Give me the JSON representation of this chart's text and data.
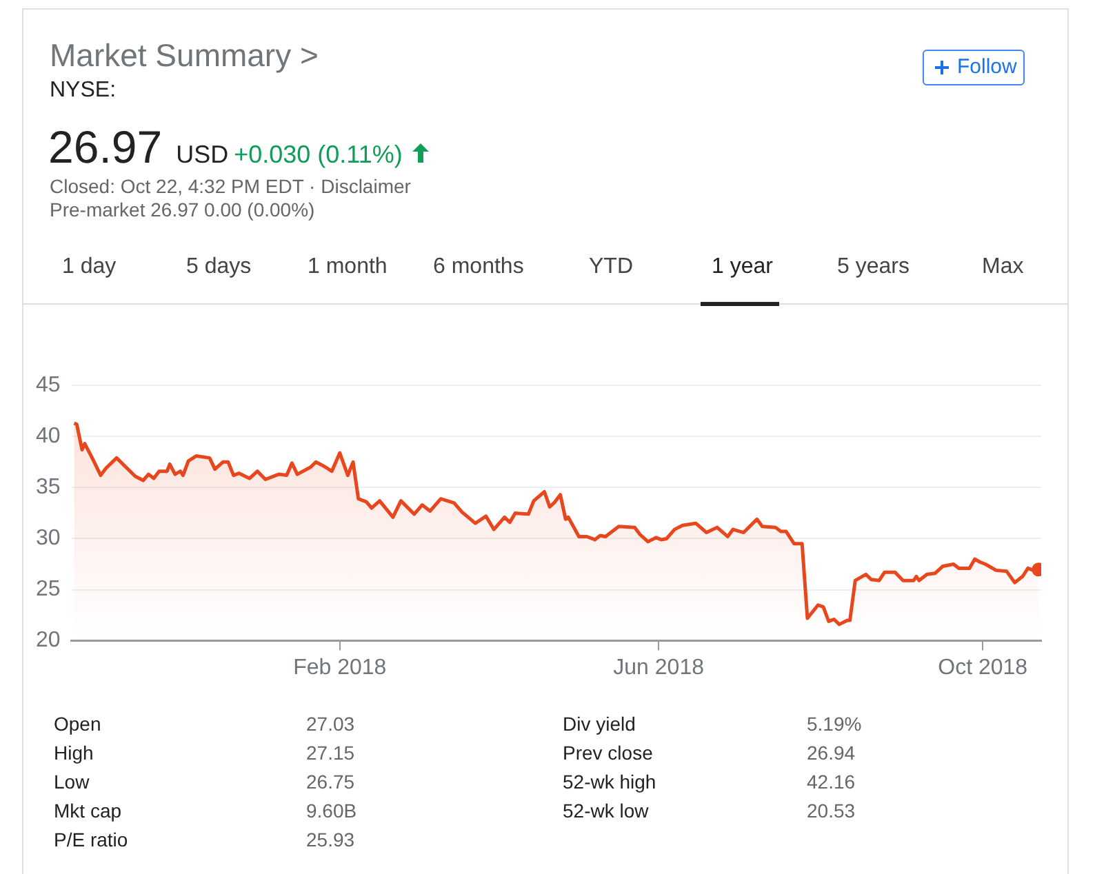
{
  "chart_data": [
    {
      "type": "other",
      "title": "Market Summary >",
      "subtitle": "NYSE:",
      "annotations": [
        "26.97",
        "USD",
        "+0.030 (0.11%)",
        "Closed: Oct 22, 4:32 PM EDT · Disclaimer",
        "Pre-market 26.97 0.00 (0.00%)",
        "Follow",
        "1 day",
        "5 days",
        "1 month",
        "6 months",
        "YTD",
        "1 year",
        "5 years",
        "Max"
      ]
    },
    {
      "type": "line",
      "grid": "y",
      "legend": false,
      "marker": "none",
      "xlim": [
        "2017-10-23",
        "2018-10-23"
      ],
      "ylim": [
        20,
        45
      ],
      "yticks": [
        20,
        25,
        30,
        35,
        40,
        45
      ],
      "xticks": [
        {
          "value": "2018-02-01",
          "label": "Feb 2018"
        },
        {
          "value": "2018-06-01",
          "label": "Jun 2018"
        },
        {
          "value": "2018-10-01",
          "label": "Oct 2018"
        }
      ],
      "x": [
        "2017-10-24",
        "2017-10-25",
        "2017-10-27",
        "2017-10-28",
        "2017-10-31",
        "2017-11-03",
        "2017-11-05",
        "2017-11-09",
        "2017-11-16",
        "2017-11-19",
        "2017-11-21",
        "2017-11-23",
        "2017-11-25",
        "2017-11-28",
        "2017-11-29",
        "2017-12-01",
        "2017-12-03",
        "2017-12-04",
        "2017-12-06",
        "2017-12-09",
        "2017-12-14",
        "2017-12-16",
        "2017-12-19",
        "2017-12-21",
        "2017-12-23",
        "2017-12-25",
        "2017-12-29",
        "2018-01-01",
        "2018-01-04",
        "2018-01-09",
        "2018-01-12",
        "2018-01-14",
        "2018-01-16",
        "2018-01-21",
        "2018-01-23",
        "2018-01-26",
        "2018-01-29",
        "2018-02-01",
        "2018-02-04",
        "2018-02-06",
        "2018-02-08",
        "2018-02-11",
        "2018-02-13",
        "2018-02-16",
        "2018-02-21",
        "2018-02-24",
        "2018-03-01",
        "2018-03-04",
        "2018-03-07",
        "2018-03-11",
        "2018-03-16",
        "2018-03-19",
        "2018-03-24",
        "2018-03-28",
        "2018-03-31",
        "2018-04-04",
        "2018-04-06",
        "2018-04-08",
        "2018-04-13",
        "2018-04-15",
        "2018-04-19",
        "2018-04-21",
        "2018-04-23",
        "2018-04-25",
        "2018-04-27",
        "2018-04-28",
        "2018-05-02",
        "2018-05-05",
        "2018-05-08",
        "2018-05-10",
        "2018-05-12",
        "2018-05-17",
        "2018-05-23",
        "2018-05-25",
        "2018-05-28",
        "2018-05-31",
        "2018-06-02",
        "2018-06-04",
        "2018-06-07",
        "2018-06-10",
        "2018-06-15",
        "2018-06-19",
        "2018-06-23",
        "2018-06-27",
        "2018-06-29",
        "2018-07-03",
        "2018-07-08",
        "2018-07-10",
        "2018-07-15",
        "2018-07-17",
        "2018-07-19",
        "2018-07-22",
        "2018-07-25",
        "2018-07-27",
        "2018-07-31",
        "2018-08-02",
        "2018-08-04",
        "2018-08-06",
        "2018-08-08",
        "2018-08-11",
        "2018-08-12",
        "2018-08-14",
        "2018-08-18",
        "2018-08-20",
        "2018-08-23",
        "2018-08-25",
        "2018-08-29",
        "2018-09-01",
        "2018-09-05",
        "2018-09-06",
        "2018-09-07",
        "2018-09-10",
        "2018-09-13",
        "2018-09-16",
        "2018-09-20",
        "2018-09-22",
        "2018-09-26",
        "2018-09-28",
        "2018-09-30",
        "2018-10-02",
        "2018-10-06",
        "2018-10-10",
        "2018-10-13",
        "2018-10-16",
        "2018-10-18",
        "2018-10-20",
        "2018-10-22"
      ],
      "series": [
        {
          "type": "area",
          "color": "#e8461c",
          "values": [
            41.3,
            41.2,
            38.7,
            39.3,
            37.8,
            36.2,
            36.9,
            37.9,
            36.1,
            35.7,
            36.3,
            35.9,
            36.6,
            36.6,
            37.3,
            36.3,
            36.6,
            36.2,
            37.6,
            38.1,
            37.9,
            36.8,
            37.5,
            37.5,
            36.2,
            36.4,
            35.9,
            36.6,
            35.8,
            36.3,
            36.2,
            37.4,
            36.3,
            37.0,
            37.5,
            37.1,
            36.6,
            38.4,
            36.2,
            37.5,
            33.9,
            33.6,
            33.0,
            33.7,
            32.1,
            33.7,
            32.4,
            33.3,
            32.7,
            33.9,
            33.5,
            32.6,
            31.5,
            32.2,
            30.9,
            32.1,
            31.6,
            32.5,
            32.4,
            33.7,
            34.6,
            33.1,
            33.6,
            34.3,
            31.9,
            32.1,
            30.2,
            30.2,
            29.9,
            30.3,
            30.2,
            31.2,
            31.1,
            30.4,
            29.7,
            30.1,
            29.9,
            30.0,
            30.9,
            31.3,
            31.5,
            30.6,
            31.1,
            30.2,
            30.9,
            30.6,
            31.9,
            31.2,
            31.1,
            30.7,
            30.7,
            29.5,
            29.5,
            22.2,
            23.5,
            23.3,
            21.9,
            22.1,
            21.6,
            22.0,
            22.0,
            25.9,
            26.5,
            26.0,
            25.9,
            26.7,
            26.7,
            25.9,
            25.9,
            26.3,
            25.9,
            26.5,
            26.6,
            27.3,
            27.5,
            27.1,
            27.1,
            28.0,
            27.7,
            27.5,
            26.9,
            26.8,
            25.7,
            26.3,
            27.1,
            26.9,
            26.97
          ]
        },
        {
          "type": "scatter",
          "color": "#e8461c",
          "marker": "circle",
          "x": [
            "2018-10-22"
          ],
          "values": [
            26.97
          ]
        }
      ]
    },
    {
      "type": "other",
      "annotations": [
        "Open",
        "27.03",
        "High",
        "27.15",
        "Low",
        "26.75",
        "Mkt cap",
        "9.60B",
        "P/E ratio",
        "25.93",
        "Div yield",
        "5.19%",
        "Prev close",
        "26.94",
        "52-wk high",
        "42.16",
        "52-wk low",
        "20.53"
      ]
    }
  ]
}
